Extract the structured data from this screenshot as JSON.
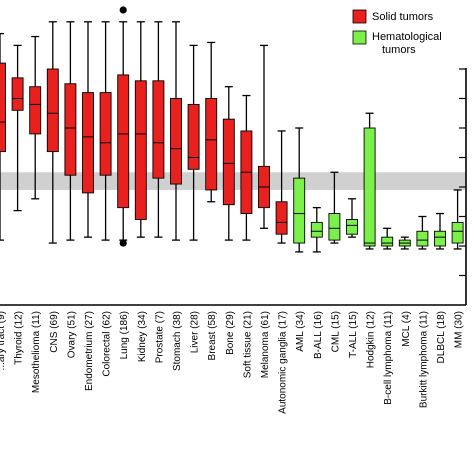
{
  "chart_data": {
    "type": "boxplot",
    "title": "",
    "xlabel": "",
    "ylabel": "",
    "ylim": [
      0,
      10
    ],
    "grid": false,
    "legend_position": "top-right",
    "shaded_band": [
      3.9,
      4.5
    ],
    "legend": [
      {
        "label": "Solid tumors",
        "color": "#e8201e"
      },
      {
        "label": "Hematological\ntumors",
        "color": "#7cf04a"
      }
    ],
    "colors": {
      "solid": "#e8201e",
      "hematological": "#7cf04a",
      "band": "#c8c8c8",
      "axis": "#000000"
    },
    "categories": [
      {
        "label": "...ary tract (9)",
        "group": "solid",
        "min": 2.2,
        "q1": 5.2,
        "median": 6.2,
        "q3": 8.2,
        "max": 9.2
      },
      {
        "label": "Thyroid (12)",
        "group": "solid",
        "min": 3.2,
        "q1": 6.6,
        "median": 7.0,
        "q3": 7.7,
        "max": 8.8
      },
      {
        "label": "Mesothelioma (11)",
        "group": "solid",
        "min": 3.6,
        "q1": 5.8,
        "median": 6.8,
        "q3": 7.4,
        "max": 9.1
      },
      {
        "label": "CNS (69)",
        "group": "solid",
        "min": 2.1,
        "q1": 5.2,
        "median": 6.5,
        "q3": 8.0,
        "max": 9.6
      },
      {
        "label": "Ovary (51)",
        "group": "solid",
        "min": 2.2,
        "q1": 4.4,
        "median": 6.0,
        "q3": 7.5,
        "max": 9.6
      },
      {
        "label": "Endometrium (27)",
        "group": "solid",
        "min": 2.3,
        "q1": 3.8,
        "median": 5.7,
        "q3": 7.2,
        "max": 9.6
      },
      {
        "label": "Colorectal (62)",
        "group": "solid",
        "min": 2.2,
        "q1": 4.4,
        "median": 5.5,
        "q3": 7.2,
        "max": 9.6
      },
      {
        "label": "Lung (186)",
        "group": "solid",
        "min": 2.2,
        "q1": 3.3,
        "median": 5.8,
        "q3": 7.8,
        "max": 9.6,
        "outliers": [
          10.0,
          2.1
        ]
      },
      {
        "label": "Kidney (34)",
        "group": "solid",
        "min": 2.3,
        "q1": 2.9,
        "median": 5.8,
        "q3": 7.6,
        "max": 9.6
      },
      {
        "label": "Prostate (7)",
        "group": "solid",
        "min": 2.3,
        "q1": 4.3,
        "median": 5.5,
        "q3": 7.6,
        "max": 9.6
      },
      {
        "label": "Stomach (38)",
        "group": "solid",
        "min": 2.2,
        "q1": 4.1,
        "median": 5.3,
        "q3": 7.0,
        "max": 9.6
      },
      {
        "label": "Liver (28)",
        "group": "solid",
        "min": 2.2,
        "q1": 4.6,
        "median": 5.0,
        "q3": 6.8,
        "max": 8.8
      },
      {
        "label": "Breast (58)",
        "group": "solid",
        "min": 3.5,
        "q1": 3.9,
        "median": 5.6,
        "q3": 7.0,
        "max": 8.9
      },
      {
        "label": "Bone (29)",
        "group": "solid",
        "min": 2.2,
        "q1": 3.4,
        "median": 4.8,
        "q3": 6.3,
        "max": 7.4
      },
      {
        "label": "Soft tissue (21)",
        "group": "solid",
        "min": 2.2,
        "q1": 3.1,
        "median": 4.5,
        "q3": 5.9,
        "max": 7.1
      },
      {
        "label": "Melanoma (61)",
        "group": "solid",
        "min": 2.6,
        "q1": 3.3,
        "median": 4.0,
        "q3": 4.7,
        "max": 8.8
      },
      {
        "label": "Autonomic ganglia (17)",
        "group": "solid",
        "min": 2.1,
        "q1": 2.4,
        "median": 2.8,
        "q3": 3.5,
        "max": 5.9
      },
      {
        "label": "AML (34)",
        "group": "hematological",
        "min": 1.8,
        "q1": 2.1,
        "median": 3.1,
        "q3": 4.3,
        "max": 6.0
      },
      {
        "label": "B-ALL (16)",
        "group": "hematological",
        "min": 1.8,
        "q1": 2.3,
        "median": 2.5,
        "q3": 2.8,
        "max": 3.3
      },
      {
        "label": "CML (15)",
        "group": "hematological",
        "min": 2.1,
        "q1": 2.2,
        "median": 2.6,
        "q3": 3.1,
        "max": 4.5
      },
      {
        "label": "T-ALL (15)",
        "group": "hematological",
        "min": 2.3,
        "q1": 2.4,
        "median": 2.7,
        "q3": 2.9,
        "max": 3.6
      },
      {
        "label": "Hodgkin (12)",
        "group": "hematological",
        "min": 1.9,
        "q1": 2.0,
        "median": 2.1,
        "q3": 6.0,
        "max": 6.5
      },
      {
        "label": "B-cell lymphoma (11)",
        "group": "hematological",
        "min": 1.9,
        "q1": 2.0,
        "median": 2.1,
        "q3": 2.3,
        "max": 2.6
      },
      {
        "label": "MCL (4)",
        "group": "hematological",
        "min": 1.9,
        "q1": 2.0,
        "median": 2.1,
        "q3": 2.2,
        "max": 2.3
      },
      {
        "label": "Burkitt lymphoma (11)",
        "group": "hematological",
        "min": 1.9,
        "q1": 2.0,
        "median": 2.2,
        "q3": 2.5,
        "max": 3.0
      },
      {
        "label": "DLBCL (18)",
        "group": "hematological",
        "min": 1.9,
        "q1": 2.0,
        "median": 2.3,
        "q3": 2.5,
        "max": 3.1
      },
      {
        "label": "MM (30)",
        "group": "hematological",
        "min": 1.9,
        "q1": 2.1,
        "median": 2.5,
        "q3": 2.8,
        "max": 3.9
      }
    ]
  }
}
